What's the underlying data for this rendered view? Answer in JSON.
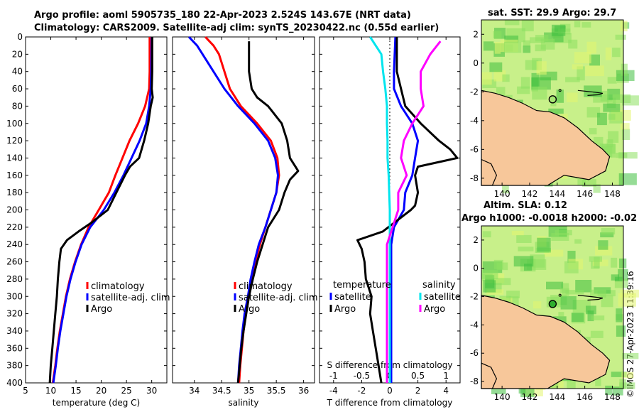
{
  "titles": {
    "line1": "Argo profile: aoml 5905735_180 22-Apr-2023 2.524S 143.67E (NRT data)",
    "line2": "Climatology: CARS2009. Satellite-adj clim: synTS_20230422.nc (0.55d earlier)",
    "map1": "sat. SST: 29.9 Argo: 29.7",
    "map2_line1": "Altim. SLA: 0.12",
    "map2_line2": "Argo h1000: -0.0018 h2000: -0.02"
  },
  "watermark": "©IMOS 27-Apr-2023 11:39:16",
  "colors": {
    "red": "#ff0000",
    "blue": "#0000ff",
    "black": "#000000",
    "cyan": "#00e5ee",
    "magenta": "#ff00ff",
    "land": "#f7c79a",
    "sea_light": "#c8f08a",
    "sea_mid": "#8de060",
    "sea_dark": "#3fbf3f"
  },
  "chart_data": [
    {
      "type": "line",
      "name": "temperature",
      "xlabel": "temperature (deg C)",
      "xlim": [
        5,
        33
      ],
      "ylim": [
        400,
        0
      ],
      "xticks": [
        5,
        10,
        15,
        20,
        25,
        30
      ],
      "yticks": [
        0,
        20,
        40,
        60,
        80,
        100,
        120,
        140,
        160,
        180,
        200,
        220,
        240,
        260,
        280,
        300,
        320,
        340,
        360,
        380,
        400
      ],
      "legend": [
        "climatology",
        "satellite-adj. clim",
        "Argo"
      ],
      "series": [
        {
          "name": "climatology",
          "color": "red",
          "depth": [
            0,
            40,
            60,
            80,
            100,
            120,
            140,
            160,
            180,
            200,
            220,
            240,
            260,
            280,
            300,
            320,
            340,
            360,
            380,
            400
          ],
          "values": [
            29.6,
            29.6,
            29.5,
            28.7,
            27.3,
            25.6,
            24.2,
            22.8,
            21.5,
            19.5,
            17.5,
            16.0,
            14.8,
            13.8,
            13.0,
            12.4,
            11.8,
            11.3,
            10.9,
            10.4
          ]
        },
        {
          "name": "satellite-adj. clim",
          "color": "blue",
          "depth": [
            0,
            40,
            60,
            80,
            100,
            120,
            140,
            160,
            180,
            200,
            220,
            240,
            260,
            280,
            300,
            320,
            340,
            360,
            380,
            400
          ],
          "values": [
            30.0,
            29.9,
            29.8,
            29.5,
            28.9,
            27.6,
            26.0,
            24.4,
            22.6,
            20.5,
            17.8,
            16.1,
            14.9,
            13.9,
            13.1,
            12.5,
            11.9,
            11.4,
            11.0,
            10.5
          ]
        },
        {
          "name": "Argo",
          "color": "black",
          "depth": [
            0,
            40,
            60,
            70,
            80,
            100,
            120,
            140,
            150,
            160,
            180,
            200,
            215,
            225,
            235,
            245,
            260,
            280,
            300,
            320,
            340,
            360,
            380,
            400
          ],
          "values": [
            30.1,
            30.1,
            30.0,
            30.2,
            29.8,
            29.3,
            28.5,
            27.5,
            25.7,
            24.7,
            23.0,
            21.3,
            18.0,
            15.5,
            13.2,
            12.0,
            11.7,
            11.4,
            11.2,
            10.9,
            10.6,
            10.3,
            10.0,
            9.8
          ]
        }
      ]
    },
    {
      "type": "line",
      "name": "salinity",
      "xlabel": "salinity",
      "xlim": [
        33.6,
        36.2
      ],
      "ylim": [
        400,
        0
      ],
      "xticks": [
        34,
        34.5,
        35,
        35.5,
        36
      ],
      "legend": [
        "climatology",
        "satellite-adj. clim",
        "Argo"
      ],
      "series": [
        {
          "name": "climatology",
          "color": "red",
          "depth": [
            0,
            10,
            20,
            40,
            60,
            80,
            100,
            120,
            140,
            160,
            180,
            200,
            220,
            240,
            260,
            280,
            300,
            320,
            340,
            360,
            380,
            400
          ],
          "values": [
            34.2,
            34.35,
            34.45,
            34.55,
            34.65,
            34.85,
            35.15,
            35.4,
            35.52,
            35.55,
            35.5,
            35.4,
            35.3,
            35.2,
            35.12,
            35.05,
            35.0,
            34.94,
            34.9,
            34.87,
            34.84,
            34.82
          ]
        },
        {
          "name": "satellite-adj. clim",
          "color": "blue",
          "depth": [
            0,
            10,
            20,
            40,
            60,
            80,
            100,
            120,
            140,
            160,
            180,
            200,
            220,
            240,
            260,
            280,
            300,
            320,
            340,
            360,
            380,
            400
          ],
          "values": [
            33.9,
            34.05,
            34.15,
            34.35,
            34.55,
            34.8,
            35.1,
            35.35,
            35.48,
            35.53,
            35.5,
            35.4,
            35.3,
            35.18,
            35.1,
            35.03,
            34.98,
            34.92,
            34.88,
            34.85,
            34.82,
            34.8
          ]
        },
        {
          "name": "Argo",
          "color": "black",
          "depth": [
            5,
            40,
            60,
            70,
            80,
            100,
            120,
            140,
            150,
            155,
            165,
            180,
            200,
            220,
            240,
            260,
            280,
            300,
            320,
            340,
            360,
            380,
            400
          ],
          "values": [
            35.0,
            35.0,
            35.05,
            35.15,
            35.35,
            35.6,
            35.7,
            35.75,
            35.85,
            35.9,
            35.75,
            35.65,
            35.55,
            35.35,
            35.25,
            35.15,
            35.07,
            35.0,
            34.95,
            34.9,
            34.86,
            34.83,
            34.8
          ]
        }
      ]
    },
    {
      "type": "line",
      "name": "difference from climatology",
      "xlabel": "T difference from climatology",
      "xlim": [
        -5,
        5
      ],
      "ylim": [
        400,
        0
      ],
      "xticks": [
        -4,
        -2,
        0,
        2,
        4
      ],
      "top_axis_label": "S difference from climatology",
      "top_xlim": [
        -1.25,
        1.25
      ],
      "top_xticks": [
        -1,
        -0.5,
        0,
        0.5,
        1
      ],
      "legend_temperature_title": "temperature",
      "legend_salinity_title": "salinity",
      "legend_labels": {
        "t_sat": "satellite",
        "t_argo": "Argo",
        "s_sat": "satellite",
        "s_argo": "Argo"
      },
      "series": [
        {
          "name": "T satellite",
          "color": "blue",
          "axis": "T",
          "depth": [
            0,
            40,
            60,
            80,
            100,
            120,
            140,
            160,
            180,
            200,
            220,
            240,
            260,
            280,
            300,
            320,
            340,
            360,
            380,
            400
          ],
          "values": [
            0.4,
            0.3,
            0.3,
            0.8,
            1.6,
            2.0,
            1.8,
            1.6,
            1.1,
            1.0,
            0.3,
            0.1,
            0.1,
            0.1,
            0.1,
            0.1,
            0.1,
            0.1,
            0.1,
            0.1
          ]
        },
        {
          "name": "T Argo",
          "color": "black",
          "axis": "T",
          "depth": [
            0,
            40,
            60,
            80,
            100,
            120,
            130,
            140,
            150,
            160,
            180,
            195,
            200,
            215,
            225,
            235,
            245,
            260,
            280,
            300,
            320,
            340,
            360,
            380,
            400
          ],
          "values": [
            0.5,
            0.5,
            0.8,
            1.1,
            2.2,
            3.5,
            4.3,
            4.8,
            2.0,
            1.8,
            2.0,
            1.8,
            1.5,
            0.3,
            -0.5,
            -2.3,
            -2.0,
            -1.8,
            -1.7,
            -1.3,
            -1.4,
            -1.2,
            -1.0,
            -0.8,
            -0.6
          ]
        },
        {
          "name": "S satellite",
          "color": "cyan",
          "axis": "S",
          "depth": [
            0,
            10,
            20,
            40,
            60,
            80,
            100,
            120,
            140,
            160,
            200,
            240,
            280,
            320,
            360,
            400
          ],
          "values": [
            -0.35,
            -0.25,
            -0.15,
            -0.12,
            -0.08,
            -0.05,
            -0.05,
            -0.04,
            -0.04,
            -0.02,
            0.0,
            0.0,
            0.0,
            0.0,
            0.0,
            0.0
          ]
        },
        {
          "name": "S Argo",
          "color": "magenta",
          "axis": "S",
          "depth": [
            5,
            20,
            40,
            60,
            80,
            100,
            120,
            140,
            160,
            180,
            200,
            220,
            240,
            260,
            280,
            300,
            320,
            340,
            360,
            380,
            400
          ],
          "values": [
            0.9,
            0.72,
            0.55,
            0.55,
            0.6,
            0.4,
            0.25,
            0.2,
            0.3,
            0.15,
            0.15,
            0.05,
            -0.05,
            -0.05,
            -0.05,
            -0.05,
            -0.05,
            -0.05,
            -0.05,
            -0.05,
            -0.05
          ]
        }
      ]
    },
    {
      "type": "heatmap",
      "name": "sst map",
      "xlim": [
        138.5,
        148.8
      ],
      "ylim": [
        -8.5,
        3
      ],
      "xticks": [
        140,
        142,
        144,
        146,
        148
      ],
      "yticks": [
        2,
        0,
        -2,
        -4,
        -6,
        -8
      ],
      "argo_marker": {
        "lon": 143.67,
        "lat": -2.52
      }
    },
    {
      "type": "heatmap",
      "name": "sla map",
      "xlim": [
        138.5,
        148.8
      ],
      "ylim": [
        -8.5,
        3
      ],
      "xticks": [
        140,
        142,
        144,
        146,
        148
      ],
      "yticks": [
        2,
        0,
        -2,
        -4,
        -6,
        -8
      ],
      "argo_marker": {
        "lon": 143.67,
        "lat": -2.52
      }
    }
  ]
}
